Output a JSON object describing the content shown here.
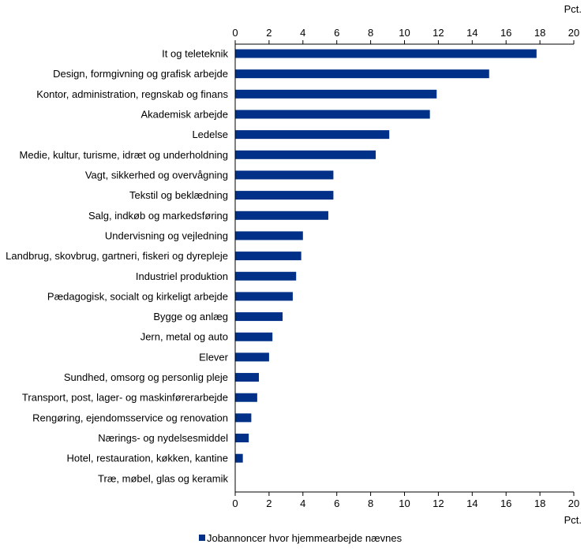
{
  "chart_data": {
    "type": "bar",
    "orientation": "horizontal",
    "categories": [
      "It og teleteknik",
      "Design, formgivning og grafisk arbejde",
      "Kontor, administration, regnskab og finans",
      "Akademisk arbejde",
      "Ledelse",
      "Medie, kultur, turisme, idræt og underholdning",
      "Vagt, sikkerhed og overvågning",
      "Tekstil og beklædning",
      "Salg, indkøb og markedsføring",
      "Undervisning og vejledning",
      "Landbrug, skovbrug, gartneri, fiskeri og dyrepleje",
      "Industriel produktion",
      "Pædagogisk, socialt og kirkeligt arbejde",
      "Bygge og anlæg",
      "Jern, metal og auto",
      "Elever",
      "Sundhed, omsorg og personlig pleje",
      "Transport, post, lager- og maskinførerarbejde",
      "Rengøring, ejendomsservice og renovation",
      "Nærings- og nydelsesmiddel",
      "Hotel, restauration, køkken, kantine",
      "Træ, møbel, glas og keramik"
    ],
    "series": [
      {
        "name": "Jobannoncer hvor hjemmearbejde nævnes",
        "values": [
          17.8,
          15.0,
          11.9,
          11.5,
          9.1,
          8.3,
          5.8,
          5.8,
          5.5,
          4.0,
          3.9,
          3.6,
          3.4,
          2.8,
          2.2,
          2.0,
          1.4,
          1.3,
          0.95,
          0.8,
          0.45,
          0.0
        ]
      }
    ],
    "xlim": [
      0,
      20
    ],
    "xticks": [
      "0",
      "2",
      "4",
      "6",
      "8",
      "10",
      "12",
      "14",
      "16",
      "18",
      "20"
    ],
    "unit": "Pct.",
    "grid": false,
    "legend": "bottom-center",
    "bar_color": "#003087"
  }
}
